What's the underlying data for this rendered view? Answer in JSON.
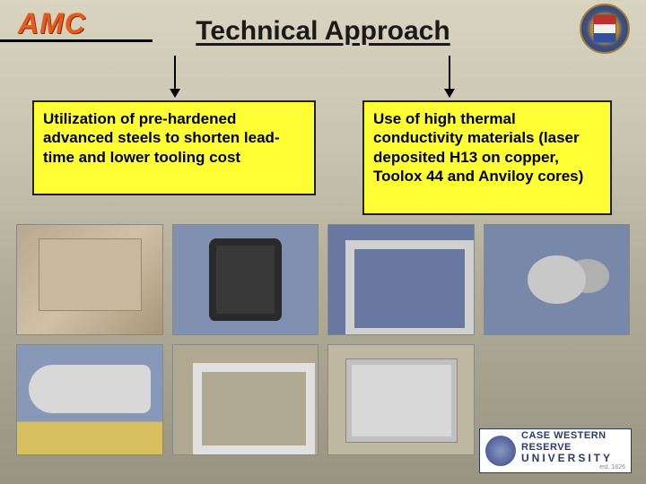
{
  "header": {
    "brand": "AMC",
    "title": "Technical Approach"
  },
  "boxes": {
    "left": "Utilization of pre-hardened advanced steels to shorten lead-time and lower tooling cost",
    "right": "Use of high thermal conductivity materials (laser deposited H13 on copper, Toolox 44 and Anviloy cores)"
  },
  "footer": {
    "org_line1": "CASE WESTERN RESERVE",
    "org_line2": "UNIVERSITY",
    "est": "est. 1826"
  },
  "style": {
    "highlight_bg": "#ffff33",
    "title_fontsize": 30,
    "box_fontsize": 17,
    "brand_color": "#e85a1a"
  }
}
